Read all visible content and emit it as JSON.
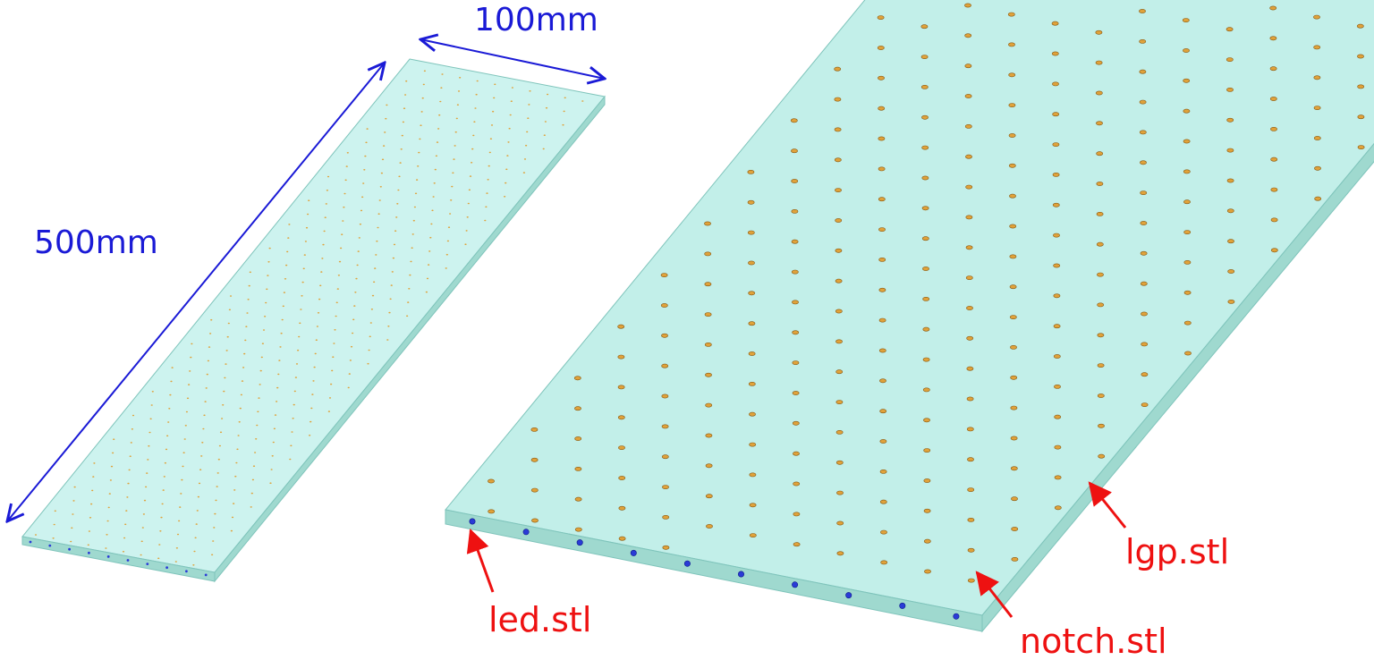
{
  "colors": {
    "dimension": "#1a1ad6",
    "callout": "#ee1111",
    "plate_top": "#cdf3ef",
    "plate_top_large": "#c2efe9",
    "plate_edge": "#9fd9cf",
    "plate_outline": "#7fc4bb",
    "notch": "#e0a23a",
    "notch_dark": "#8a5a12",
    "led": "#2a3bd6"
  },
  "dimensions": {
    "width_label": "100mm",
    "length_label": "500mm"
  },
  "callouts": {
    "led": "led.stl",
    "notch": "notch.stl",
    "lgp": "lgp.stl"
  },
  "icons": {
    "arrowhead": "open-arrowhead",
    "callout_arrowhead": "filled-arrowhead"
  }
}
